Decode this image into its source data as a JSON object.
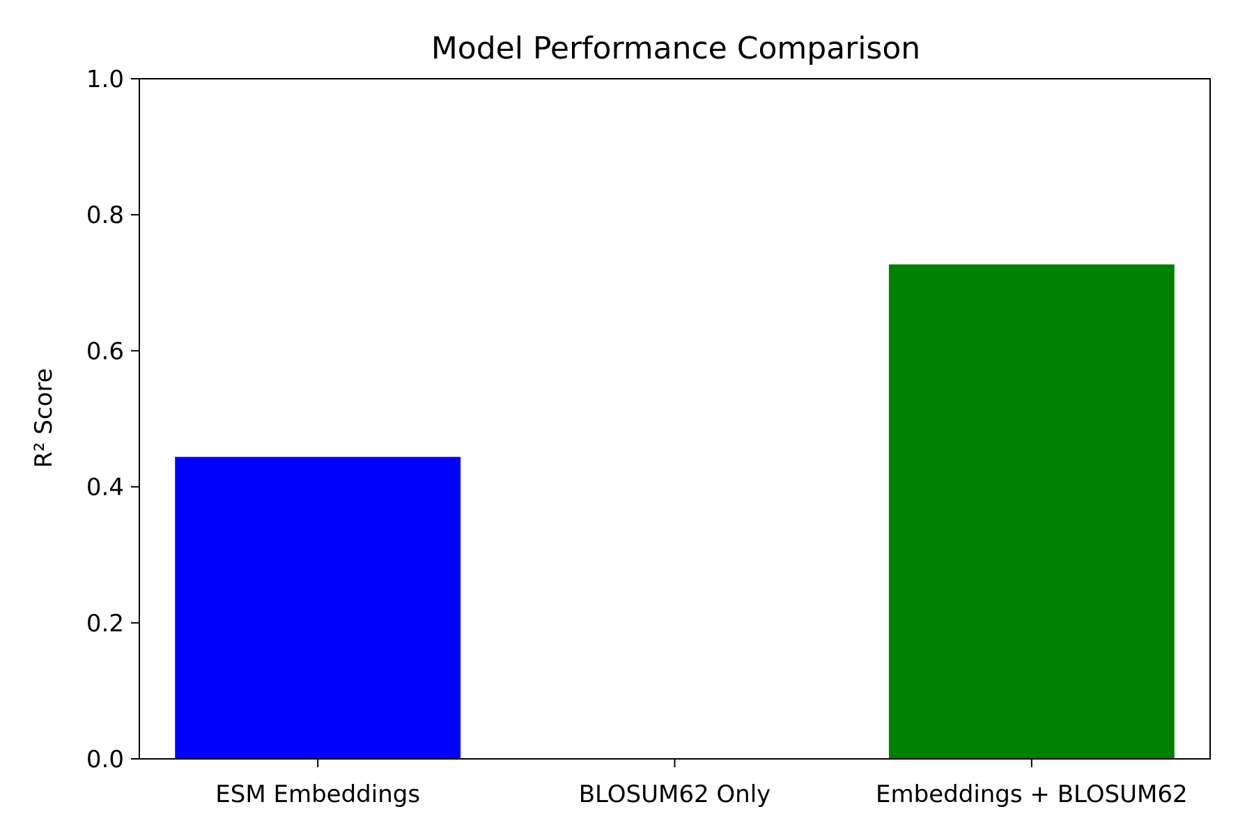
{
  "chart_data": {
    "type": "bar",
    "title": "Model Performance Comparison",
    "xlabel": "",
    "ylabel": "R² Score",
    "categories": [
      "ESM Embeddings",
      "BLOSUM62 Only",
      "Embeddings + BLOSUM62"
    ],
    "values": [
      0.444,
      0.0,
      0.727
    ],
    "colors": [
      "#0000ff",
      "#ffffff",
      "#008000"
    ],
    "ylim": [
      0,
      1.0
    ],
    "yticks": [
      "0.0",
      "0.2",
      "0.4",
      "0.6",
      "0.8",
      "1.0"
    ],
    "grid": false,
    "legend": "none"
  }
}
